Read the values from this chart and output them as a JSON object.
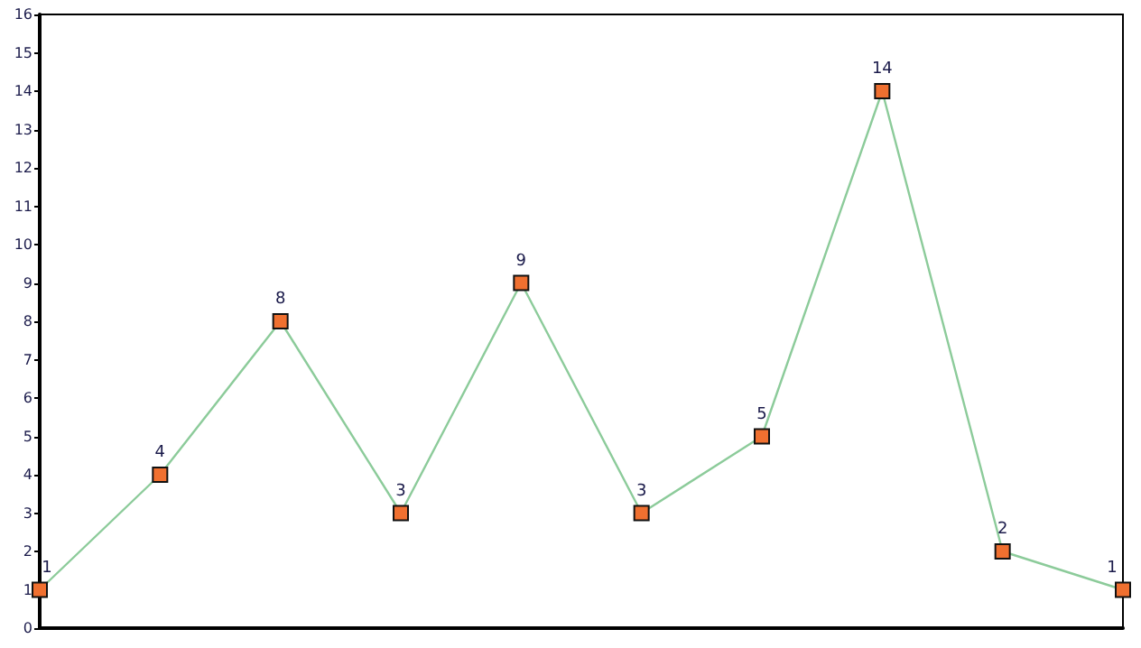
{
  "chart_data": {
    "type": "line",
    "categories": [
      null,
      null,
      null,
      null,
      null,
      null,
      null,
      null,
      null,
      null
    ],
    "series": [
      {
        "color": "#8ccb9a",
        "values": [
          1,
          4,
          8,
          3,
          9,
          3,
          5,
          14,
          2,
          1
        ]
      }
    ],
    "marker": "square",
    "data_labels": true,
    "ylim": [
      0,
      16
    ],
    "yticks": [
      0,
      1,
      2,
      3,
      4,
      5,
      6,
      7,
      8,
      9,
      10,
      11,
      12,
      13,
      14,
      15,
      16
    ]
  }
}
